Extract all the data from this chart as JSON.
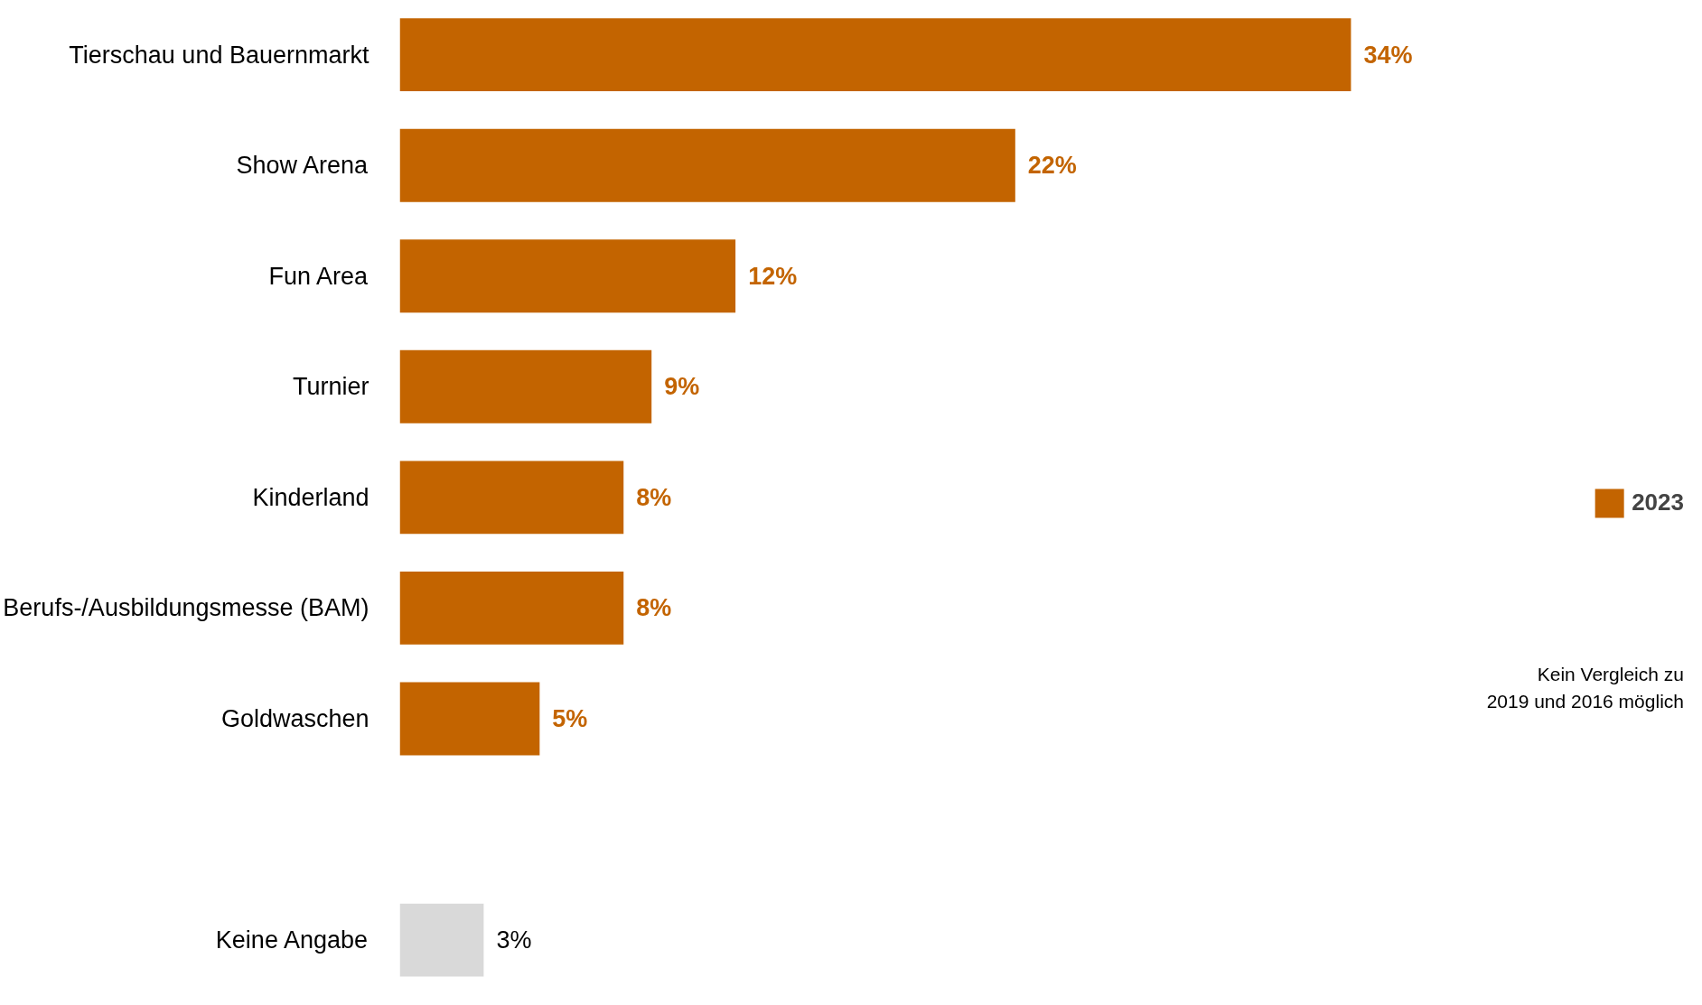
{
  "chart_data": {
    "type": "bar",
    "orientation": "horizontal",
    "categories": [
      "Tierschau und Bauernmarkt",
      "Show Arena",
      "Fun Area",
      "Turnier",
      "Kinderland",
      "Berufs-/Ausbildungsmesse (BAM)",
      "Goldwaschen",
      null,
      "Keine Angabe"
    ],
    "series": [
      {
        "name": "2023",
        "color": "#c36400",
        "values": [
          34,
          22,
          12,
          9,
          8,
          8,
          5,
          null,
          3
        ],
        "value_labels": [
          "34%",
          "22%",
          "12%",
          "9%",
          "8%",
          "8%",
          "5%",
          null,
          "3%"
        ],
        "colors": [
          "#c36400",
          "#c36400",
          "#c36400",
          "#c36400",
          "#c36400",
          "#c36400",
          "#c36400",
          "#c36400",
          "#d9d9d9"
        ]
      }
    ],
    "legend": "right",
    "grid": false,
    "annotations": [
      "Kein Vergleich zu\n2019 und 2016 möglich"
    ]
  }
}
